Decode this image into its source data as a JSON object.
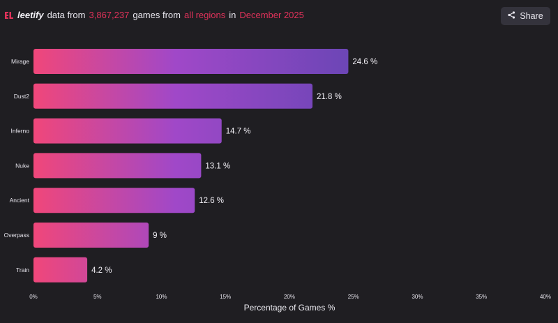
{
  "header": {
    "brand": "leetify",
    "t1": "data from",
    "games_count": "3,867,237",
    "t2": "games from",
    "region": "all regions",
    "t3": "in",
    "period": "December 2025",
    "brand_color": "#e0325a"
  },
  "share_button": {
    "label": "Share",
    "icon": "share-icon"
  },
  "chart_data": {
    "type": "bar",
    "orientation": "horizontal",
    "categories": [
      "Mirage",
      "Dust2",
      "Inferno",
      "Nuke",
      "Ancient",
      "Overpass",
      "Train"
    ],
    "values": [
      24.6,
      21.8,
      14.7,
      13.1,
      12.6,
      9,
      4.2
    ],
    "value_labels": [
      "24.6 %",
      "21.8 %",
      "14.7 %",
      "13.1 %",
      "12.6 %",
      "9 %",
      "4.2 %"
    ],
    "xlim": [
      0,
      40
    ],
    "xticks": [
      0,
      5,
      10,
      15,
      20,
      25,
      30,
      35,
      40
    ],
    "xtick_labels": [
      "0%",
      "5%",
      "10%",
      "15%",
      "20%",
      "25%",
      "30%",
      "35%",
      "40%"
    ],
    "xlabel": "Percentage of Games %",
    "ylabel": "",
    "grid": false,
    "colors": {
      "start": "#f0477a",
      "mid": "#a048c8",
      "end": "#6c46b6"
    }
  }
}
